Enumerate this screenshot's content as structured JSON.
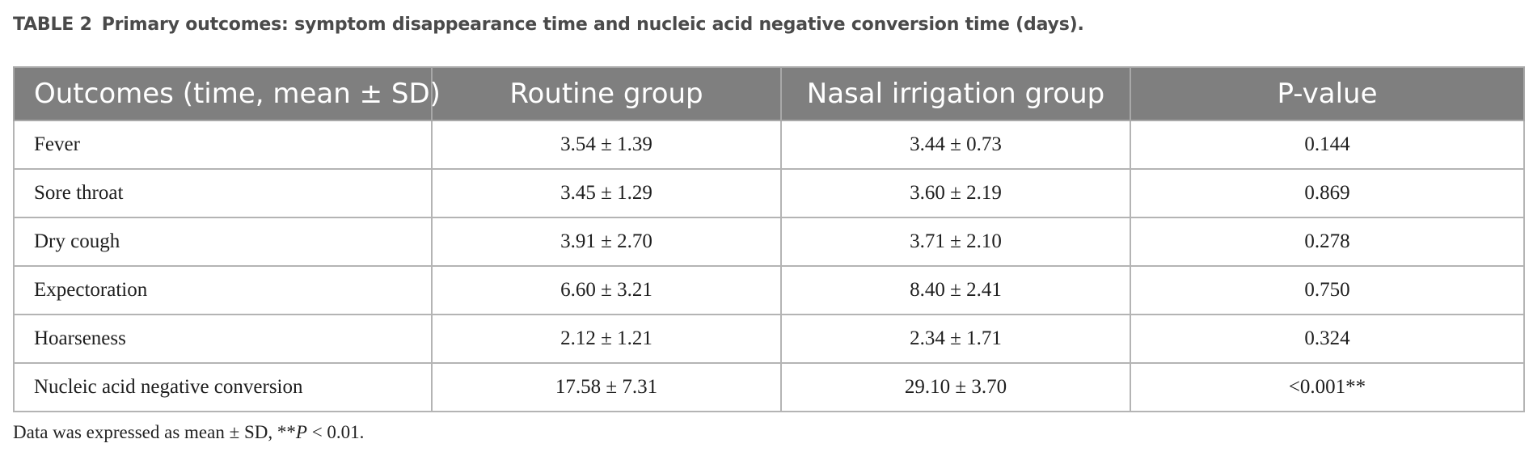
{
  "caption": {
    "label": "TABLE 2",
    "title": "Primary outcomes: symptom disappearance time and nucleic acid negative conversion time (days)."
  },
  "table": {
    "headers": [
      "Outcomes (time, mean ± SD)",
      "Routine group",
      "Nasal irrigation group",
      "P-value"
    ],
    "rows": [
      [
        "Fever",
        "3.54 ± 1.39",
        "3.44 ± 0.73",
        "0.144"
      ],
      [
        "Sore throat",
        "3.45 ± 1.29",
        "3.60 ± 2.19",
        "0.869"
      ],
      [
        "Dry cough",
        "3.91 ± 2.70",
        "3.71 ± 2.10",
        "0.278"
      ],
      [
        "Expectoration",
        "6.60 ± 3.21",
        "8.40 ± 2.41",
        "0.750"
      ],
      [
        "Hoarseness",
        "2.12 ± 1.21",
        "2.34 ± 1.71",
        "0.324"
      ],
      [
        "Nucleic acid negative conversion",
        "17.58 ± 7.31",
        "29.10 ± 3.70",
        "<0.001**"
      ]
    ]
  },
  "footnote": {
    "prefix": "Data was expressed as mean ± SD, **",
    "italic": "P",
    "suffix": " < 0.01."
  }
}
